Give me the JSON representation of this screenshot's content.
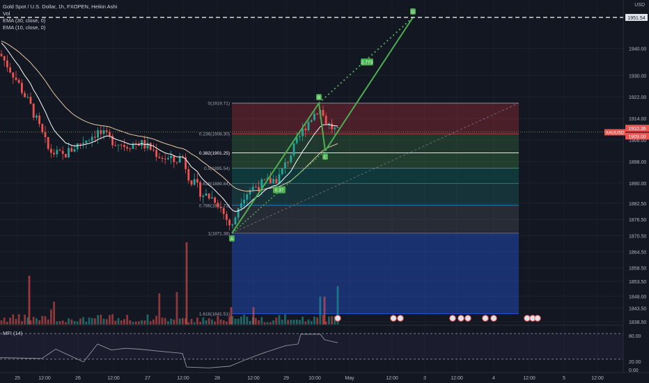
{
  "legend": {
    "title": "Gold Spot / U.S. Dollar, 1h, FXOPEN, Heikin Ashi",
    "vol": "Vol",
    "ema30": "EMA (30, close, 0)",
    "ema10": "EMA (10, close, 0)"
  },
  "currency": "USD",
  "price_axis": {
    "ticks": [
      1940.0,
      1930.0,
      1922.0,
      1914.0,
      1906.0,
      1898.0,
      1890.0,
      1882.5,
      1876.5,
      1870.5,
      1864.5,
      1858.5,
      1853.5,
      1848.0,
      1843.5,
      1838.5
    ],
    "tick_labels": [
      "1940.00",
      "1930.00",
      "1922.00",
      "1914.00",
      "1906.00",
      "1898.00",
      "1890.00",
      "1882.50",
      "1876.50",
      "1870.50",
      "1864.50",
      "1858.50",
      "1853.50",
      "1848.00",
      "1843.50",
      "1838.50"
    ],
    "target_label": "1951.54",
    "price_labels": [
      "1910.36",
      "1909.00"
    ],
    "symbol_tag": "XAUUSD"
  },
  "mfi": {
    "label": "MFI (14)",
    "ticks": [
      "80.00",
      "20.00",
      "0.00"
    ]
  },
  "time_axis": [
    "25",
    "12:00",
    "26",
    "12:00",
    "27",
    "12:00",
    "28",
    "12:00",
    "29",
    "10:00",
    "May",
    "12:00",
    "3",
    "12:00",
    "4",
    "12:00",
    "5",
    "12:00"
  ],
  "fib_labels": [
    "0(1919.71)",
    "0.236(1908.30)",
    "0.382(1901.25)",
    "0.5(1895.54)",
    "0.618(1889.84)",
    "0.786(1881.73)",
    "1(1871.38)",
    "1.618(1841.51)"
  ],
  "points": {
    "A": "A",
    "B": "B",
    "C": "C",
    "D": "D"
  },
  "ratios": [
    "0.37",
    "2.773"
  ],
  "colors": {
    "bg": "#131722",
    "up": "#26a69a",
    "down": "#ef5350",
    "ema30": "#e8c9a0",
    "ema10": "#ffffff",
    "pattern": "#4caf50",
    "mfi": "#9598a1"
  }
}
